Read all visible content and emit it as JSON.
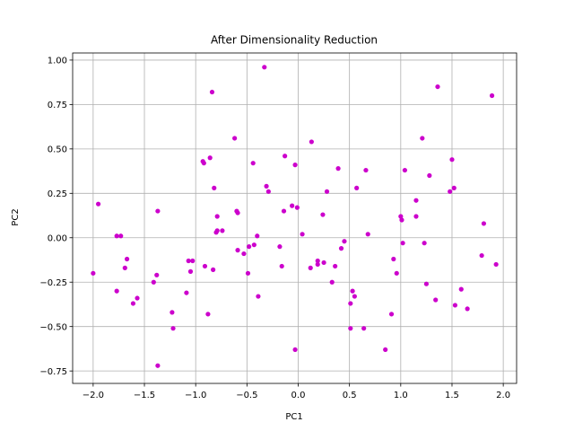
{
  "chart_data": {
    "type": "scatter",
    "title": "After Dimensionality Reduction",
    "xlabel": "PC1",
    "ylabel": "PC2",
    "xlim": [
      -2.2,
      2.13
    ],
    "ylim": [
      -0.82,
      1.04
    ],
    "xticks": [
      -2.0,
      -1.5,
      -1.0,
      -0.5,
      0.0,
      0.5,
      1.0,
      1.5,
      2.0
    ],
    "xtick_labels": [
      "−2.0",
      "−1.5",
      "−1.0",
      "−0.5",
      "0.0",
      "0.5",
      "1.0",
      "1.5",
      "2.0"
    ],
    "yticks": [
      -0.75,
      -0.5,
      -0.25,
      0.0,
      0.25,
      0.5,
      0.75,
      1.0
    ],
    "ytick_labels": [
      "−0.75",
      "−0.50",
      "−0.25",
      "0.00",
      "0.25",
      "0.50",
      "0.75",
      "1.00"
    ],
    "grid": true,
    "colors": {
      "point": "#cc00cc",
      "grid": "#b0b0b0",
      "axis": "#000000"
    },
    "points": [
      [
        -2.0,
        -0.2
      ],
      [
        -1.95,
        0.19
      ],
      [
        -1.77,
        0.01
      ],
      [
        -1.73,
        0.01
      ],
      [
        -1.77,
        -0.3
      ],
      [
        -1.69,
        -0.17
      ],
      [
        -1.67,
        -0.12
      ],
      [
        -1.61,
        -0.37
      ],
      [
        -1.57,
        -0.34
      ],
      [
        -1.41,
        -0.25
      ],
      [
        -1.38,
        -0.21
      ],
      [
        -1.37,
        0.15
      ],
      [
        -1.37,
        -0.72
      ],
      [
        -1.23,
        -0.42
      ],
      [
        -1.22,
        -0.51
      ],
      [
        -1.09,
        -0.31
      ],
      [
        -1.07,
        -0.13
      ],
      [
        -1.05,
        -0.19
      ],
      [
        -1.03,
        -0.13
      ],
      [
        -0.93,
        0.43
      ],
      [
        -0.92,
        0.42
      ],
      [
        -0.91,
        -0.16
      ],
      [
        -0.88,
        -0.43
      ],
      [
        -0.86,
        0.45
      ],
      [
        -0.84,
        0.82
      ],
      [
        -0.83,
        -0.18
      ],
      [
        -0.82,
        0.28
      ],
      [
        -0.8,
        0.03
      ],
      [
        -0.79,
        0.04
      ],
      [
        -0.79,
        0.12
      ],
      [
        -0.74,
        0.04
      ],
      [
        -0.62,
        0.56
      ],
      [
        -0.6,
        0.15
      ],
      [
        -0.59,
        0.14
      ],
      [
        -0.59,
        -0.07
      ],
      [
        -0.53,
        -0.09
      ],
      [
        -0.49,
        -0.2
      ],
      [
        -0.48,
        -0.05
      ],
      [
        -0.44,
        0.42
      ],
      [
        -0.43,
        -0.04
      ],
      [
        -0.4,
        0.01
      ],
      [
        -0.39,
        -0.33
      ],
      [
        -0.33,
        0.96
      ],
      [
        -0.31,
        0.29
      ],
      [
        -0.29,
        0.26
      ],
      [
        -0.18,
        -0.05
      ],
      [
        -0.16,
        -0.16
      ],
      [
        -0.14,
        0.15
      ],
      [
        -0.13,
        0.46
      ],
      [
        -0.06,
        0.18
      ],
      [
        -0.03,
        0.41
      ],
      [
        -0.03,
        -0.63
      ],
      [
        -0.01,
        0.17
      ],
      [
        0.04,
        0.02
      ],
      [
        0.12,
        -0.17
      ],
      [
        0.13,
        0.54
      ],
      [
        0.19,
        -0.15
      ],
      [
        0.19,
        -0.13
      ],
      [
        0.24,
        0.13
      ],
      [
        0.25,
        -0.14
      ],
      [
        0.28,
        0.26
      ],
      [
        0.33,
        -0.25
      ],
      [
        0.36,
        -0.16
      ],
      [
        0.39,
        0.39
      ],
      [
        0.42,
        -0.06
      ],
      [
        0.45,
        -0.02
      ],
      [
        0.51,
        -0.51
      ],
      [
        0.51,
        -0.37
      ],
      [
        0.53,
        -0.3
      ],
      [
        0.55,
        -0.33
      ],
      [
        0.57,
        0.28
      ],
      [
        0.64,
        -0.51
      ],
      [
        0.66,
        0.38
      ],
      [
        0.68,
        0.02
      ],
      [
        0.85,
        -0.63
      ],
      [
        0.91,
        -0.43
      ],
      [
        0.93,
        -0.12
      ],
      [
        0.96,
        -0.2
      ],
      [
        1.0,
        0.12
      ],
      [
        1.01,
        0.1
      ],
      [
        1.02,
        -0.03
      ],
      [
        1.04,
        0.38
      ],
      [
        1.15,
        0.21
      ],
      [
        1.15,
        0.12
      ],
      [
        1.21,
        0.56
      ],
      [
        1.23,
        -0.03
      ],
      [
        1.25,
        -0.26
      ],
      [
        1.28,
        0.35
      ],
      [
        1.34,
        -0.35
      ],
      [
        1.36,
        0.85
      ],
      [
        1.48,
        0.26
      ],
      [
        1.5,
        0.44
      ],
      [
        1.52,
        0.28
      ],
      [
        1.53,
        -0.38
      ],
      [
        1.59,
        -0.29
      ],
      [
        1.65,
        -0.4
      ],
      [
        1.79,
        -0.1
      ],
      [
        1.81,
        0.08
      ],
      [
        1.89,
        0.8
      ],
      [
        1.93,
        -0.15
      ]
    ]
  }
}
